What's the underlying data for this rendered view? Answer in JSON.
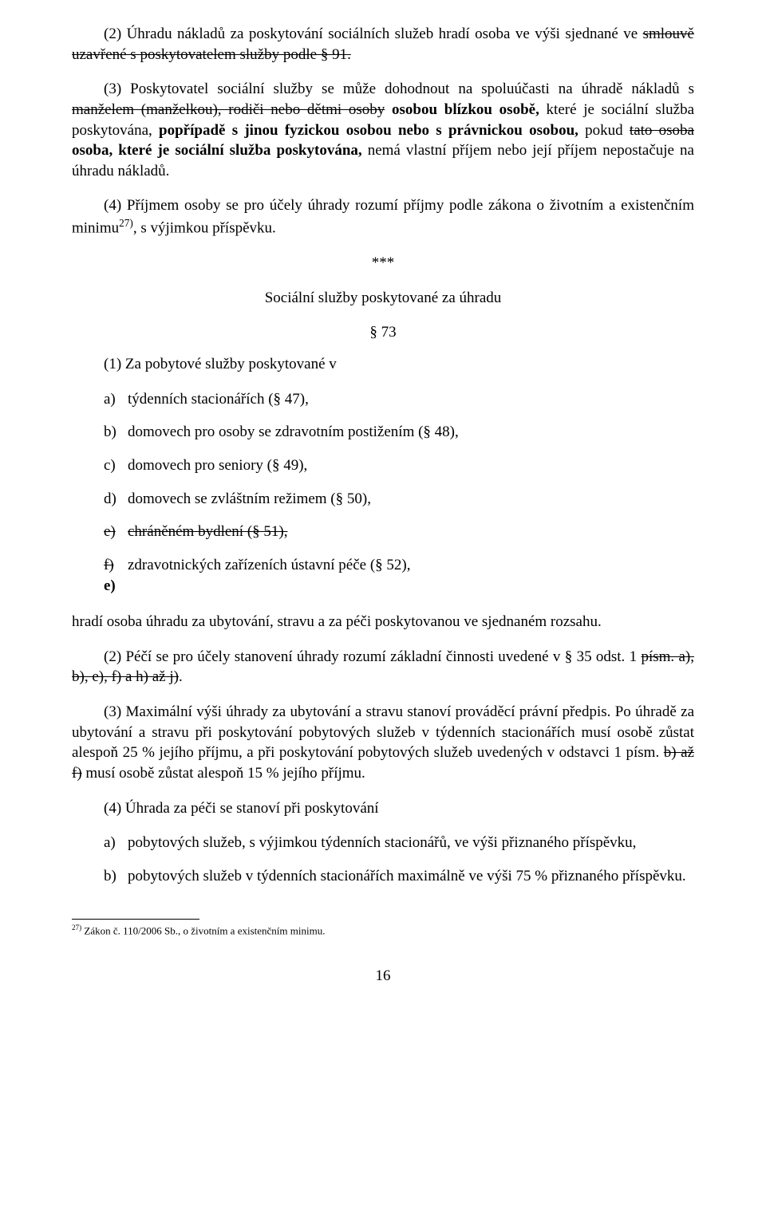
{
  "doc": {
    "p2": {
      "prefix": "(2) Úhradu nákladů za poskytování sociálních služeb hradí osoba ve výši sjednané ve ",
      "strike": "smlouvě uzavřené s poskytovatelem služby podle § 91.",
      "suffix": ""
    },
    "p3": {
      "a": "(3) Poskytovatel sociální služby se může dohodnout na spoluúčasti na úhradě nákladů s ",
      "strike1": "manželem (manželkou), rodiči nebo dětmi osoby",
      "b": " ",
      "bold1": "osobou blízkou osobě,",
      "c": " které je sociální služba poskytována, ",
      "bold2": "popřípadě s jinou fyzickou osobou nebo s právnickou osobou,",
      "d": " pokud ",
      "strike2": "tato osoba",
      "e": " ",
      "bold3": "osoba, které je sociální služba poskytována,",
      "f": " nemá vlastní příjem nebo její příjem nepostačuje na úhradu nákladů."
    },
    "p4": {
      "a": "(4) Příjmem osoby se pro účely úhrady rozumí příjmy podle zákona o životním a existenčním minimu",
      "sup": "27)",
      "b": ", s výjimkou příspěvku."
    },
    "stars": "***",
    "heading_services": "Sociální služby poskytované za úhradu",
    "section73": "§ 73",
    "p73_1_intro": "(1) Za pobytové služby poskytované v",
    "list1": {
      "a_marker": "a)",
      "a_text": "týdenních stacionářích (§ 47),",
      "b_marker": "b)",
      "b_text": "domovech pro osoby se zdravotním postižením (§ 48),",
      "c_marker": "c)",
      "c_text": "domovech pro seniory (§ 49),",
      "d_marker": "d)",
      "d_text": "domovech se zvláštním režimem (§ 50),",
      "e_marker": "e)",
      "e_text": "chráněném bydlení (§ 51),",
      "f_marker_old": "f)",
      "f_marker_new": " e)",
      "f_text": " zdravotnických zařízeních ústavní péče (§ 52),"
    },
    "p73_1_tail": "hradí osoba úhradu za ubytování, stravu a za péči poskytovanou ve sjednaném rozsahu.",
    "p73_2": {
      "a": "(2) Péčí se pro účely stanovení úhrady rozumí základní činnosti uvedené v § 35 odst. 1 ",
      "strike": "písm. a), b), e), f) a h) až j)",
      "b": "."
    },
    "p73_3": {
      "a": "(3) Maximální výši úhrady za ubytování a stravu stanoví prováděcí právní předpis. Po úhradě za ubytování a stravu při poskytování pobytových služeb v týdenních stacionářích musí osobě zůstat alespoň 25 % jejího příjmu, a při poskytování pobytových služeb uvedených v odstavci 1 písm. ",
      "strike": "b) až f)",
      "b": " musí osobě zůstat alespoň 15 % jejího příjmu."
    },
    "p73_4_intro": "(4) Úhrada za péči se stanoví při poskytování",
    "list2": {
      "a_marker": "a)",
      "a_text": "pobytových služeb, s výjimkou týdenních stacionářů, ve výši přiznaného příspěvku,",
      "b_marker": "b)",
      "b_text": "pobytových služeb v týdenních stacionářích maximálně ve výši 75 % přiznaného příspěvku."
    },
    "footnote": {
      "sup": "27)",
      "text": " Zákon č. 110/2006 Sb., o životním a existenčním minimu."
    },
    "page_number": "16"
  }
}
